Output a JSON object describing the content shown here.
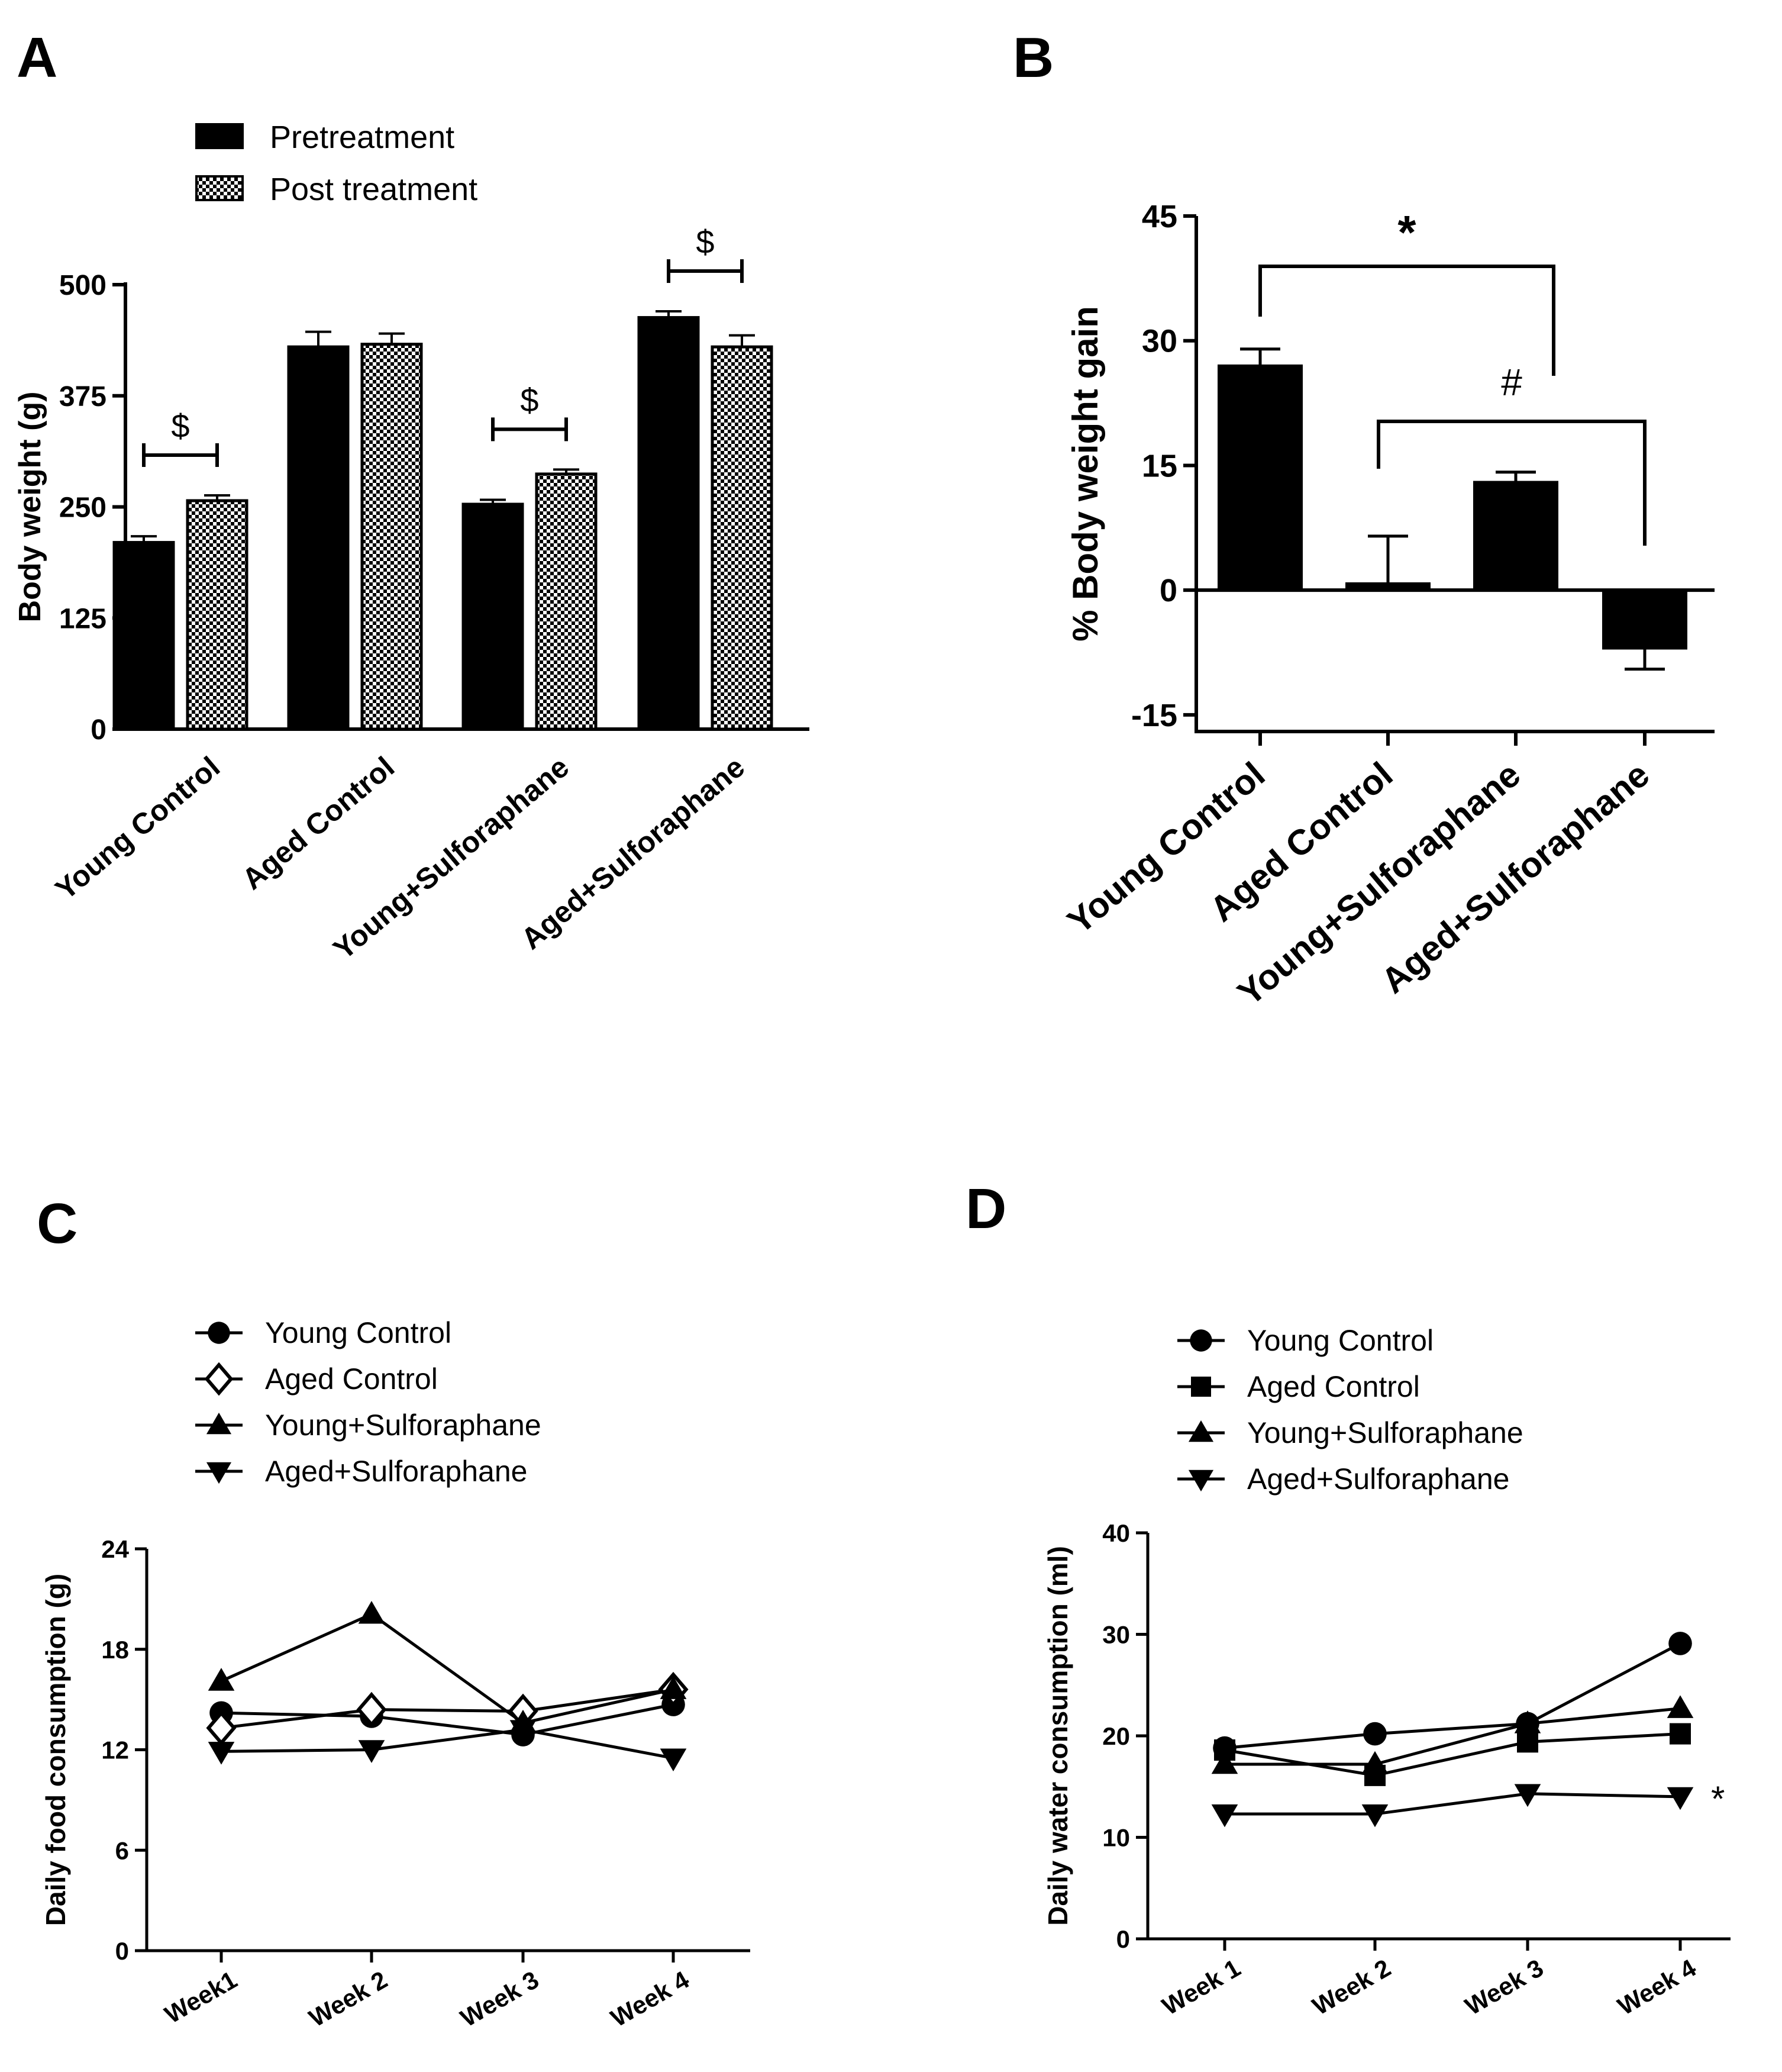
{
  "chart_data": [
    {
      "panel": "A",
      "type": "bar",
      "ylabel": "Body weight (g)",
      "ylim": [
        0,
        500
      ],
      "yticks": [
        0,
        125,
        250,
        375,
        500
      ],
      "categories": [
        "Young Control",
        "Aged Control",
        "Young+Sulforaphane",
        "Aged+Sulforaphane"
      ],
      "series": [
        {
          "name": "Pretreatment",
          "fill": "solid",
          "values": [
            210,
            430,
            253,
            463
          ],
          "errors": [
            7,
            17,
            5,
            7
          ]
        },
        {
          "name": "Post treatment",
          "fill": "checker",
          "values": [
            257,
            433,
            287,
            430
          ],
          "errors": [
            6,
            12,
            5,
            13
          ]
        }
      ],
      "annotations": [
        {
          "text": "$",
          "category": 0
        },
        {
          "text": "$",
          "category": 2
        },
        {
          "text": "$",
          "category": 3
        }
      ]
    },
    {
      "panel": "B",
      "type": "bar",
      "ylabel": "% Body weight gain",
      "ylim": [
        -17,
        45
      ],
      "yticks": [
        -15,
        0,
        15,
        30,
        45
      ],
      "categories": [
        "Young Control",
        "Aged Control",
        "Young+Sulforaphane",
        "Aged+Sulforaphane"
      ],
      "values": [
        27,
        0.8,
        13,
        -7
      ],
      "errors": [
        2,
        5.7,
        1.2,
        2.5
      ],
      "annotations": [
        {
          "text": "*",
          "from": 0,
          "to": 2
        },
        {
          "text": "#",
          "from": 1,
          "to": 3
        }
      ]
    },
    {
      "panel": "C",
      "type": "line",
      "ylabel": "Daily food consumption (g)",
      "ylim": [
        0,
        24
      ],
      "yticks": [
        0,
        6,
        12,
        18,
        24
      ],
      "categories": [
        "Week1",
        "Week 2",
        "Week 3",
        "Week 4"
      ],
      "series": [
        {
          "name": "Young Control",
          "marker": "circle",
          "values": [
            14.2,
            14.0,
            12.9,
            14.7
          ]
        },
        {
          "name": "Aged Control",
          "marker": "diamond-open",
          "values": [
            13.3,
            14.4,
            14.3,
            15.6
          ]
        },
        {
          "name": "Young+Sulforaphane",
          "marker": "triangle-up",
          "values": [
            16.1,
            20.1,
            13.6,
            15.6
          ]
        },
        {
          "name": "Aged+Sulforaphane",
          "marker": "triangle-down",
          "values": [
            11.9,
            12.0,
            13.2,
            11.5
          ]
        }
      ]
    },
    {
      "panel": "D",
      "type": "line",
      "ylabel": "Daily water consumption (ml)",
      "ylim": [
        0,
        40
      ],
      "yticks": [
        0,
        10,
        20,
        30,
        40
      ],
      "categories": [
        "Week 1",
        "Week 2",
        "Week 3",
        "Week 4"
      ],
      "series": [
        {
          "name": "Young Control",
          "marker": "circle",
          "values": [
            18.8,
            20.2,
            21.2,
            29.1
          ]
        },
        {
          "name": "Aged Control",
          "marker": "square",
          "values": [
            18.6,
            16.1,
            19.4,
            20.2
          ]
        },
        {
          "name": "Young+Sulforaphane",
          "marker": "triangle-up",
          "values": [
            17.2,
            17.2,
            21.2,
            22.7
          ]
        },
        {
          "name": "Aged+Sulforaphane",
          "marker": "triangle-down",
          "values": [
            12.3,
            12.3,
            14.3,
            14.0
          ]
        }
      ],
      "annotations": [
        {
          "text": "*",
          "series": 3,
          "category": 3
        }
      ]
    }
  ]
}
